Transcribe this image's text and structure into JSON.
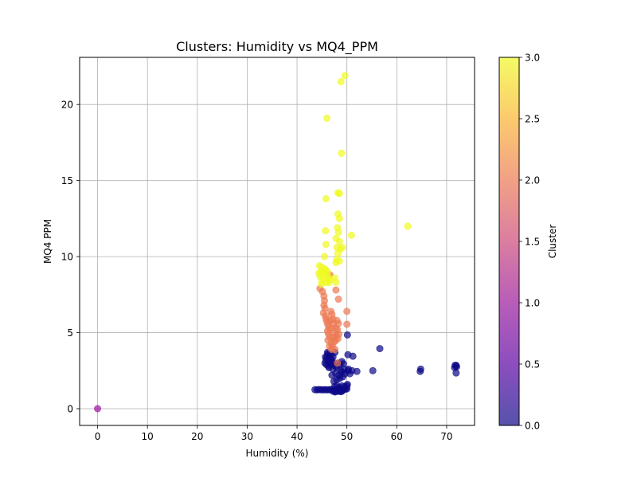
{
  "chart_data": {
    "type": "scatter",
    "title": "Clusters: Humidity vs MQ4_PPM",
    "xlabel": "Humidity (%)",
    "ylabel": "MQ4 PPM",
    "xlim": [
      -3.6,
      75.6
    ],
    "ylim": [
      -1.1,
      23.1
    ],
    "x_ticks": [
      0,
      10,
      20,
      30,
      40,
      50,
      60,
      70
    ],
    "y_ticks": [
      0,
      5,
      10,
      15,
      20
    ],
    "grid": true,
    "colormap": "plasma",
    "colorbar": {
      "label": "Cluster",
      "range": [
        0,
        3
      ],
      "ticks": [
        "0.0",
        "0.5",
        "1.0",
        "1.5",
        "2.0",
        "2.5",
        "3.0"
      ],
      "stops": [
        "#0d0887",
        "#5b02a3",
        "#9a179b",
        "#cb4678",
        "#eb7852",
        "#fbb32f",
        "#f0f921"
      ]
    },
    "series": [
      {
        "cluster": 0,
        "color": "#0d0887",
        "points": [
          [
            43.6,
            1.25
          ],
          [
            44.0,
            1.24
          ],
          [
            44.4,
            1.26
          ],
          [
            44.8,
            1.25
          ],
          [
            45.2,
            1.24
          ],
          [
            45.6,
            1.25
          ],
          [
            46.0,
            1.24
          ],
          [
            46.4,
            1.25
          ],
          [
            46.8,
            1.25
          ],
          [
            47.2,
            1.26
          ],
          [
            47.6,
            1.24
          ],
          [
            48.0,
            1.25
          ],
          [
            48.4,
            1.25
          ],
          [
            48.8,
            1.26
          ],
          [
            49.2,
            1.25
          ],
          [
            49.6,
            1.27
          ],
          [
            50.0,
            1.3
          ],
          [
            47.2,
            1.15
          ],
          [
            47.8,
            1.13
          ],
          [
            48.4,
            1.14
          ],
          [
            49.0,
            1.15
          ],
          [
            47.6,
            1.1
          ],
          [
            48.8,
            1.12
          ],
          [
            47.5,
            1.45
          ],
          [
            48.0,
            1.5
          ],
          [
            48.5,
            1.4
          ],
          [
            49.0,
            1.5
          ],
          [
            49.5,
            1.45
          ],
          [
            50.0,
            1.5
          ],
          [
            50.1,
            1.6
          ],
          [
            49.8,
            1.35
          ],
          [
            47.4,
            1.8
          ],
          [
            48.0,
            1.9
          ],
          [
            48.6,
            2.0
          ],
          [
            49.2,
            2.1
          ],
          [
            47.0,
            2.2
          ],
          [
            47.8,
            2.3
          ],
          [
            48.4,
            2.2
          ],
          [
            49.0,
            2.4
          ],
          [
            49.6,
            2.3
          ],
          [
            47.2,
            2.6
          ],
          [
            48.0,
            2.7
          ],
          [
            48.8,
            2.5
          ],
          [
            49.4,
            2.6
          ],
          [
            50.2,
            2.5
          ],
          [
            48.2,
            3.0
          ],
          [
            49.0,
            3.1
          ],
          [
            48.6,
            2.9
          ],
          [
            47.7,
            2.8
          ],
          [
            49.3,
            2.95
          ],
          [
            45.6,
            3.0
          ],
          [
            45.8,
            3.2
          ],
          [
            46.0,
            3.4
          ],
          [
            46.2,
            3.6
          ],
          [
            46.4,
            3.1
          ],
          [
            46.6,
            3.3
          ],
          [
            46.8,
            3.5
          ],
          [
            47.0,
            3.2
          ],
          [
            45.9,
            2.9
          ],
          [
            46.3,
            2.8
          ],
          [
            46.7,
            2.9
          ],
          [
            47.1,
            3.0
          ],
          [
            46.1,
            3.7
          ],
          [
            46.5,
            3.6
          ],
          [
            47.2,
            3.4
          ],
          [
            45.7,
            3.4
          ],
          [
            46.9,
            3.05
          ],
          [
            46.4,
            2.7
          ],
          [
            47.6,
            3.7
          ],
          [
            50.1,
            4.85
          ],
          [
            50.2,
            3.55
          ],
          [
            51.2,
            3.45
          ],
          [
            50.3,
            2.6
          ],
          [
            51.0,
            2.5
          ],
          [
            52.0,
            2.45
          ],
          [
            50.6,
            2.3
          ],
          [
            55.2,
            2.5
          ],
          [
            56.6,
            3.95
          ],
          [
            64.8,
            2.6
          ],
          [
            64.7,
            2.45
          ],
          [
            71.6,
            2.7
          ],
          [
            71.9,
            2.85
          ],
          [
            72.0,
            2.75
          ],
          [
            71.7,
            2.85
          ],
          [
            71.9,
            2.35
          ]
        ]
      },
      {
        "cluster": 1,
        "color": "#9c179e",
        "points": [
          [
            0.0,
            0.0
          ]
        ]
      },
      {
        "cluster": 2,
        "color": "#ed7953",
        "points": [
          [
            44.6,
            7.9
          ],
          [
            45.1,
            7.7
          ],
          [
            45.4,
            7.4
          ],
          [
            45.5,
            7.1
          ],
          [
            45.4,
            6.8
          ],
          [
            45.6,
            6.6
          ],
          [
            45.3,
            6.3
          ],
          [
            45.7,
            6.1
          ],
          [
            45.8,
            5.9
          ],
          [
            46.0,
            5.7
          ],
          [
            46.2,
            5.5
          ],
          [
            46.4,
            5.3
          ],
          [
            46.1,
            5.1
          ],
          [
            46.3,
            4.9
          ],
          [
            46.6,
            4.7
          ],
          [
            46.2,
            4.5
          ],
          [
            46.8,
            4.3
          ],
          [
            46.5,
            4.1
          ],
          [
            46.9,
            3.9
          ],
          [
            46.8,
            6.4
          ],
          [
            47.0,
            6.2
          ],
          [
            47.2,
            5.9
          ],
          [
            47.3,
            5.6
          ],
          [
            47.0,
            5.3
          ],
          [
            47.4,
            5.0
          ],
          [
            47.2,
            4.7
          ],
          [
            47.5,
            4.4
          ],
          [
            47.1,
            4.1
          ],
          [
            47.6,
            3.9
          ],
          [
            46.7,
            5.8
          ],
          [
            47.8,
            5.3
          ],
          [
            47.9,
            4.8
          ],
          [
            47.7,
            4.5
          ],
          [
            48.0,
            5.8
          ],
          [
            48.3,
            5.6
          ],
          [
            48.1,
            5.2
          ],
          [
            48.4,
            4.9
          ],
          [
            48.2,
            4.6
          ],
          [
            47.8,
            7.8
          ],
          [
            48.3,
            7.2
          ],
          [
            46.6,
            8.8
          ],
          [
            50.0,
            6.4
          ],
          [
            50.0,
            5.55
          ],
          [
            48.1,
            3.0
          ]
        ]
      },
      {
        "cluster": 3,
        "color": "#f0f921",
        "points": [
          [
            49.6,
            21.9
          ],
          [
            48.8,
            21.5
          ],
          [
            46.0,
            19.1
          ],
          [
            48.9,
            16.8
          ],
          [
            48.2,
            14.2
          ],
          [
            48.5,
            14.15
          ],
          [
            45.8,
            13.8
          ],
          [
            48.2,
            12.8
          ],
          [
            48.5,
            12.5
          ],
          [
            45.7,
            11.7
          ],
          [
            48.1,
            11.9
          ],
          [
            48.3,
            11.6
          ],
          [
            50.9,
            11.4
          ],
          [
            62.2,
            12.0
          ],
          [
            47.8,
            11.2
          ],
          [
            48.5,
            11.0
          ],
          [
            45.8,
            10.8
          ],
          [
            48.0,
            10.6
          ],
          [
            48.7,
            10.5
          ],
          [
            49.1,
            10.6
          ],
          [
            48.2,
            10.2
          ],
          [
            45.5,
            10.0
          ],
          [
            48.0,
            9.8
          ],
          [
            47.8,
            9.6
          ],
          [
            48.5,
            9.7
          ],
          [
            44.5,
            9.4
          ],
          [
            45.0,
            9.3
          ],
          [
            45.5,
            9.2
          ],
          [
            44.8,
            9.0
          ],
          [
            45.2,
            8.9
          ],
          [
            45.8,
            9.1
          ],
          [
            46.0,
            8.8
          ],
          [
            44.6,
            8.7
          ],
          [
            45.4,
            8.6
          ],
          [
            46.2,
            8.6
          ],
          [
            46.6,
            8.5
          ],
          [
            45.0,
            8.4
          ],
          [
            45.8,
            8.3
          ],
          [
            46.4,
            8.3
          ],
          [
            47.6,
            8.6
          ],
          [
            47.8,
            8.3
          ],
          [
            44.4,
            8.9
          ],
          [
            44.9,
            8.2
          ],
          [
            46.1,
            9.0
          ]
        ]
      }
    ]
  }
}
